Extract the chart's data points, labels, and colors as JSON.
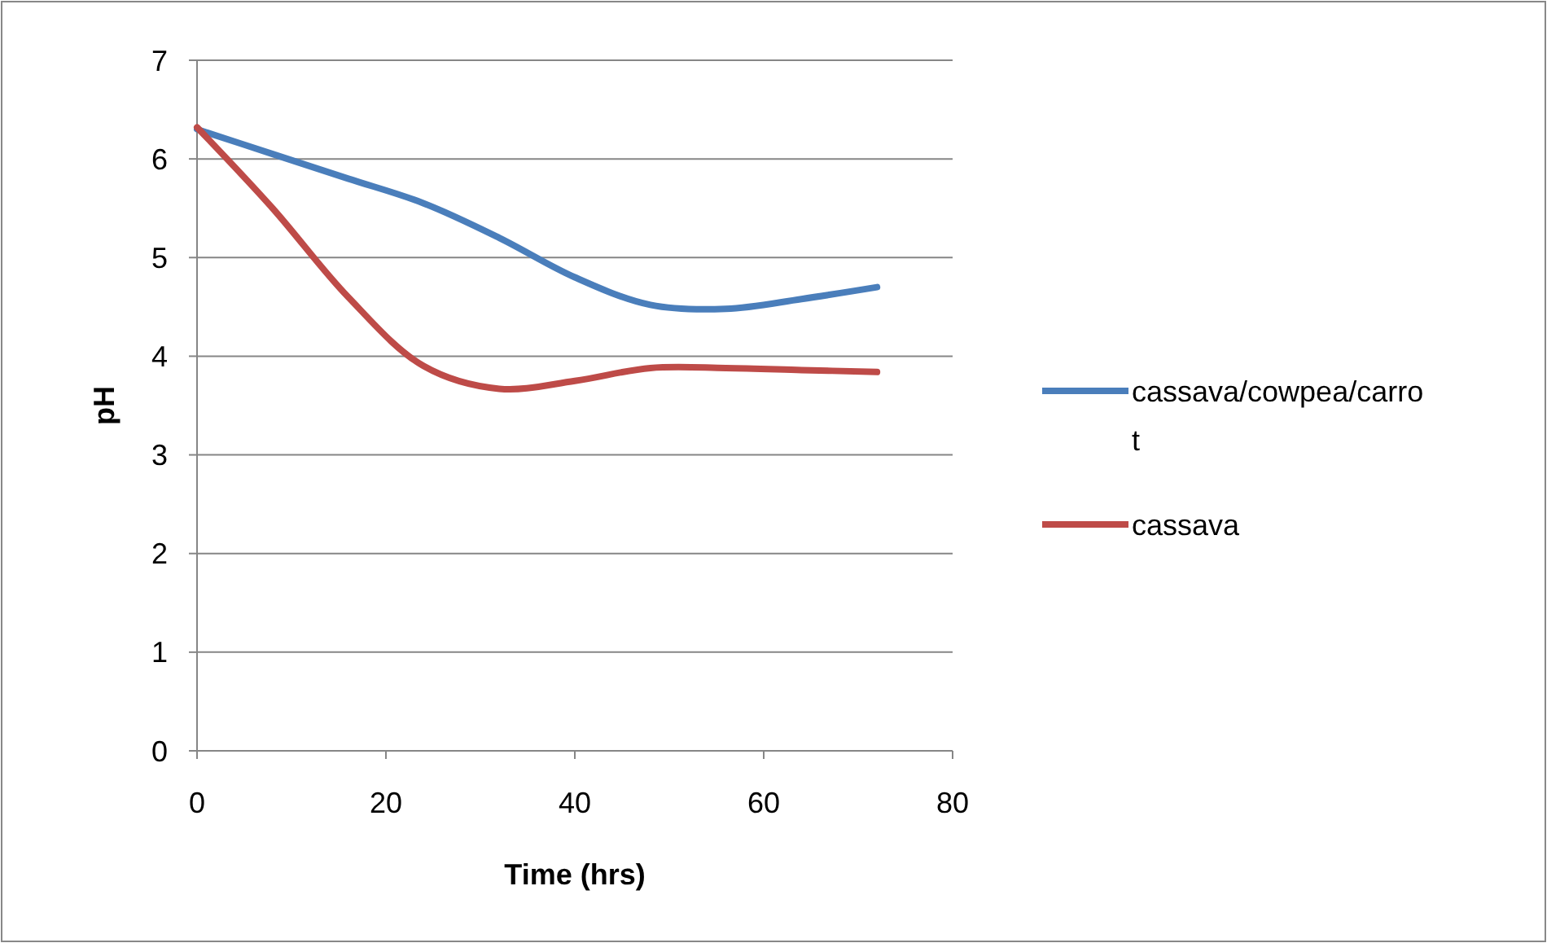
{
  "chart_data": {
    "type": "line",
    "xlabel": "Time (hrs)",
    "ylabel": "pH",
    "x": [
      0,
      8,
      16,
      24,
      32,
      40,
      48,
      56,
      64,
      72
    ],
    "series": [
      {
        "name": "cassava/cowpea/carrot",
        "color": "#4a7ebb",
        "values": [
          6.3,
          6.05,
          5.8,
          5.55,
          5.2,
          4.8,
          4.52,
          4.48,
          4.58,
          4.7
        ]
      },
      {
        "name": "cassava",
        "color": "#be4b48",
        "values": [
          6.32,
          5.5,
          4.6,
          3.9,
          3.67,
          3.75,
          3.88,
          3.88,
          3.86,
          3.84
        ]
      }
    ],
    "xlim": [
      0,
      80
    ],
    "xticks": [
      0,
      20,
      40,
      60,
      80
    ],
    "ylim": [
      0,
      7
    ],
    "yticks": [
      0,
      1,
      2,
      3,
      4,
      5,
      6,
      7
    ],
    "grid": "y",
    "legend": "right",
    "marker": "none",
    "line_style": "solid"
  }
}
